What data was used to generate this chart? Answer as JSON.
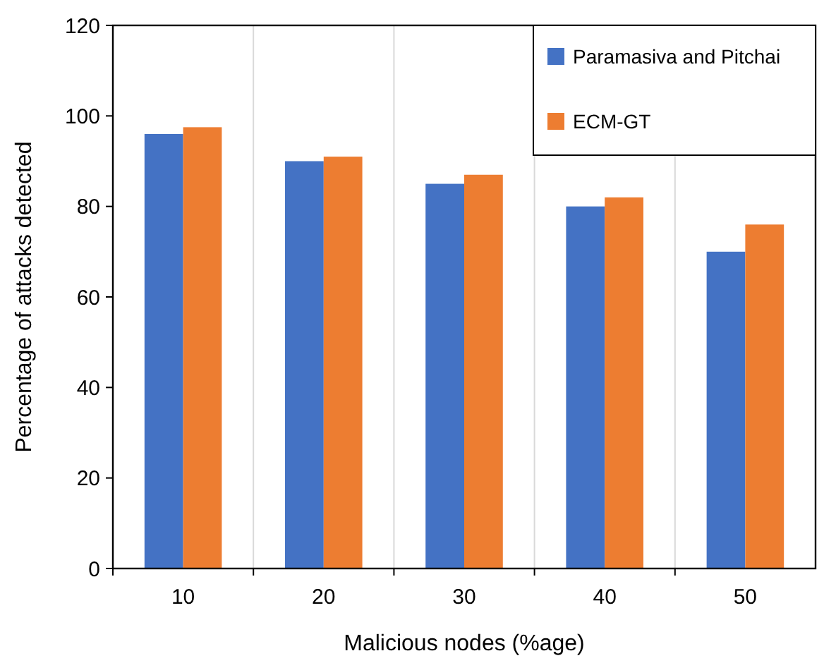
{
  "chart_data": {
    "type": "bar",
    "xlabel": "Malicious nodes (%age)",
    "ylabel": "Percentage of attacks detected",
    "categories": [
      "10",
      "20",
      "30",
      "40",
      "50"
    ],
    "series": [
      {
        "name": "Paramasiva and Pitchai",
        "color": "#4472c4",
        "values": [
          96,
          90,
          85,
          80,
          70
        ]
      },
      {
        "name": "ECM-GT",
        "color": "#ed7d31",
        "values": [
          97.5,
          91,
          87,
          82,
          76
        ]
      }
    ],
    "ylim": [
      0,
      120
    ],
    "yticks": [
      0,
      20,
      40,
      60,
      80,
      100,
      120
    ],
    "grid": "x",
    "legend": "top right"
  }
}
